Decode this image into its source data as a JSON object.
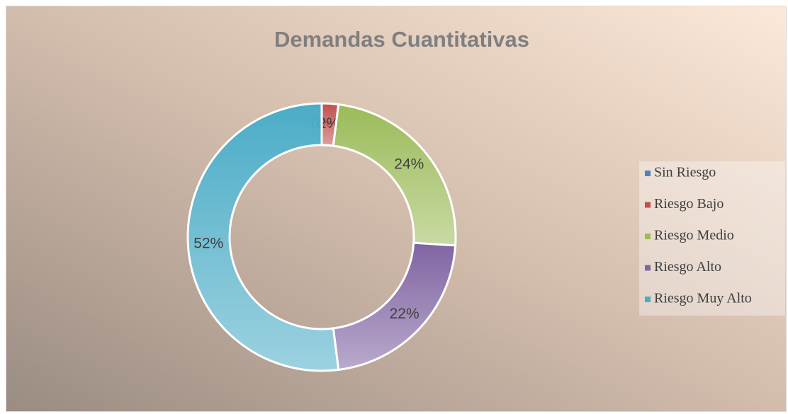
{
  "chart_data": {
    "type": "donut",
    "title": "Demandas Cuantitativas",
    "categories": [
      "Sin Riesgo",
      "Riesgo Bajo",
      "Riesgo Medio",
      "Riesgo Alto",
      "Riesgo Muy Alto"
    ],
    "values": [
      0,
      2,
      24,
      22,
      52
    ],
    "value_labels": [
      "0%",
      "2%",
      "24%",
      "22%",
      "52%"
    ],
    "colors": [
      "#4f81bd",
      "#c0504d",
      "#9bbb59",
      "#8064a2",
      "#4bacc6"
    ],
    "legend": "right"
  }
}
